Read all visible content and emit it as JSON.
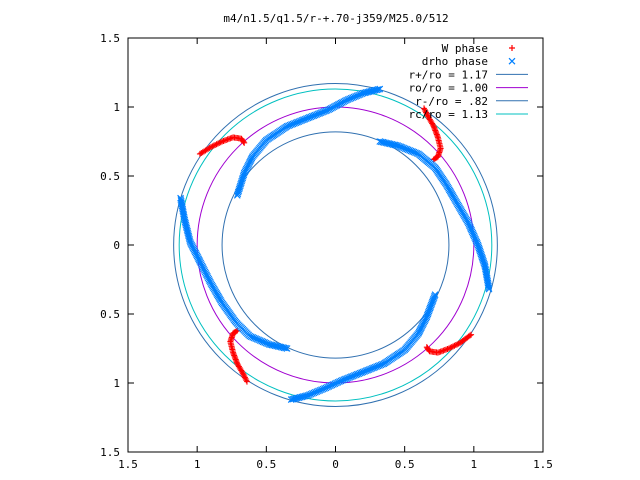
{
  "chart_data": {
    "type": "scatter",
    "title": "m4/n1.5/q1.5/r-+.70-j359/M25.0/512",
    "xlabel": "",
    "ylabel": "",
    "xlim": [
      -1.5,
      1.5
    ],
    "ylim": [
      -1.5,
      1.5
    ],
    "xtick_values": [
      -1.5,
      -1,
      -0.5,
      0,
      0.5,
      1,
      1.5
    ],
    "xtick_labels": [
      "1.5",
      "1",
      "0.5",
      "0",
      "0.5",
      "1",
      "1.5"
    ],
    "ytick_values": [
      1.5,
      1,
      0.5,
      0,
      -0.5,
      -1,
      -1.5
    ],
    "ytick_labels": [
      "1.5",
      "1",
      "0.5",
      "0",
      "0.5",
      "1",
      "1.5"
    ],
    "grid": false,
    "legend_position": "top-right",
    "colors": {
      "w_phase": "#ff0000",
      "drho_phase": "#0080ff",
      "r_plus": "#3070b0",
      "r_o": "#a000d0",
      "r_minus": "#3070b0",
      "r_c": "#00c0c0"
    },
    "circles": [
      {
        "name": "r+/ro = 1.17",
        "radius": 1.17,
        "color": "#3070b0"
      },
      {
        "name": "ro/ro = 1.00",
        "radius": 1.0,
        "color": "#a000d0"
      },
      {
        "name": "r-/ro = .82",
        "radius": 0.82,
        "color": "#3070b0"
      },
      {
        "name": "rc/ro = 1.13",
        "radius": 1.13,
        "color": "#00c0c0"
      }
    ],
    "series": [
      {
        "name": "W phase",
        "marker": "plus",
        "color": "#ff0000",
        "segments": [
          [
            [
              -0.98,
              0.66
            ],
            [
              -0.9,
              0.71
            ],
            [
              -0.82,
              0.75
            ],
            [
              -0.74,
              0.78
            ],
            [
              -0.68,
              0.77
            ],
            [
              -0.66,
              0.74
            ]
          ],
          [
            [
              0.64,
              0.99
            ],
            [
              0.67,
              0.93
            ],
            [
              0.71,
              0.86
            ],
            [
              0.74,
              0.78
            ],
            [
              0.76,
              0.7
            ],
            [
              0.74,
              0.64
            ],
            [
              0.71,
              0.62
            ]
          ],
          [
            [
              0.98,
              -0.65
            ],
            [
              0.9,
              -0.71
            ],
            [
              0.82,
              -0.75
            ],
            [
              0.74,
              -0.78
            ],
            [
              0.68,
              -0.77
            ],
            [
              0.66,
              -0.74
            ]
          ],
          [
            [
              -0.64,
              -0.99
            ],
            [
              -0.67,
              -0.93
            ],
            [
              -0.71,
              -0.86
            ],
            [
              -0.74,
              -0.78
            ],
            [
              -0.76,
              -0.7
            ],
            [
              -0.74,
              -0.64
            ],
            [
              -0.71,
              -0.62
            ]
          ]
        ]
      },
      {
        "name": "drho phase",
        "marker": "cross",
        "color": "#0080ff",
        "segments": [
          [
            [
              0.32,
              1.13
            ],
            [
              0.2,
              1.1
            ],
            [
              0.08,
              1.05
            ],
            [
              -0.05,
              0.98
            ],
            [
              -0.2,
              0.92
            ],
            [
              -0.35,
              0.86
            ],
            [
              -0.5,
              0.76
            ],
            [
              -0.6,
              0.64
            ],
            [
              -0.66,
              0.52
            ],
            [
              -0.71,
              0.36
            ]
          ],
          [
            [
              0.32,
              0.75
            ],
            [
              0.45,
              0.72
            ],
            [
              0.6,
              0.66
            ],
            [
              0.72,
              0.56
            ],
            [
              0.8,
              0.44
            ],
            [
              0.88,
              0.3
            ],
            [
              0.96,
              0.16
            ],
            [
              1.03,
              0.0
            ],
            [
              1.08,
              -0.15
            ],
            [
              1.11,
              -0.32
            ]
          ],
          [
            [
              -0.32,
              -1.12
            ],
            [
              -0.2,
              -1.09
            ],
            [
              -0.08,
              -1.04
            ],
            [
              0.05,
              -0.98
            ],
            [
              0.2,
              -0.92
            ],
            [
              0.35,
              -0.86
            ],
            [
              0.5,
              -0.76
            ],
            [
              0.6,
              -0.64
            ],
            [
              0.66,
              -0.52
            ],
            [
              0.72,
              -0.36
            ]
          ],
          [
            [
              -0.35,
              -0.75
            ],
            [
              -0.48,
              -0.72
            ],
            [
              -0.62,
              -0.66
            ],
            [
              -0.72,
              -0.56
            ],
            [
              -0.82,
              -0.42
            ],
            [
              -0.9,
              -0.28
            ],
            [
              -0.98,
              -0.12
            ],
            [
              -1.05,
              0.02
            ],
            [
              -1.09,
              0.18
            ],
            [
              -1.12,
              0.34
            ]
          ]
        ]
      }
    ]
  }
}
